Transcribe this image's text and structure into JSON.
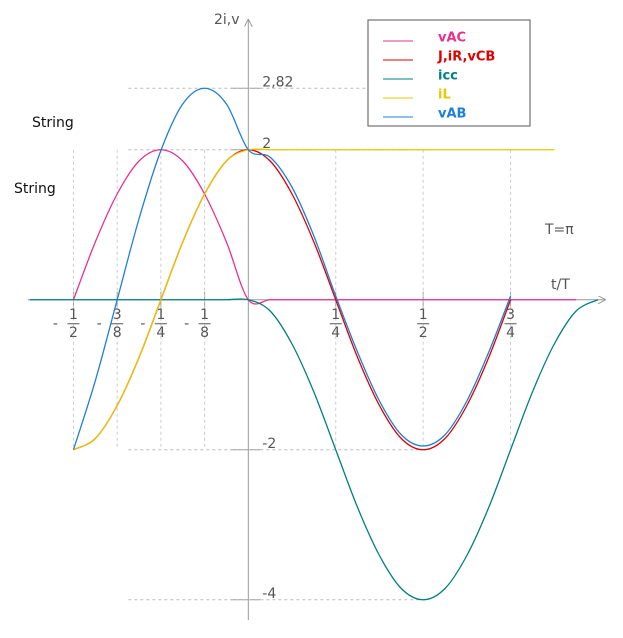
{
  "chart_data": {
    "type": "line",
    "x_label": "t/T",
    "y_label": "2i,v",
    "annotations": [
      "String",
      "String",
      "T=π"
    ],
    "x": [
      -0.625,
      -0.5625,
      -0.5,
      -0.4375,
      -0.375,
      -0.3125,
      -0.25,
      -0.1875,
      -0.125,
      -0.0625,
      0,
      0.0625,
      0.125,
      0.1875,
      0.25,
      0.3125,
      0.375,
      0.4375,
      0.5,
      0.5625,
      0.625,
      0.6875,
      0.75,
      0.8125,
      0.875,
      0.9375,
      1.0
    ],
    "series": [
      {
        "name": "vAC",
        "color": "#e8308f",
        "values": [
          null,
          null,
          0,
          0.77,
          1.41,
          1.85,
          2,
          1.85,
          1.41,
          0.77,
          0,
          0,
          0,
          0,
          0,
          0,
          0,
          0,
          0,
          0,
          0,
          0,
          0,
          0,
          0,
          0,
          null
        ]
      },
      {
        "name": "J,iR,vCB",
        "color": "#e00000",
        "values": [
          null,
          null,
          -2,
          -1.85,
          -1.41,
          -0.77,
          0,
          0.77,
          1.41,
          1.85,
          2,
          1.85,
          1.41,
          0.77,
          0,
          -0.77,
          -1.41,
          -1.85,
          -2,
          -1.85,
          -1.41,
          -0.77,
          0,
          null,
          null,
          null,
          null
        ]
      },
      {
        "name": "icc",
        "color": "#008080",
        "values": [
          0,
          0,
          0,
          0,
          0,
          0,
          0,
          0,
          0,
          0,
          0,
          -0.15,
          -0.59,
          -1.23,
          -2,
          -2.77,
          -3.41,
          -3.85,
          -4,
          -3.85,
          -3.41,
          -2.77,
          -2,
          -1.23,
          -0.59,
          -0.15,
          0
        ]
      },
      {
        "name": "iL",
        "color": "#e8c800",
        "values": [
          null,
          null,
          -2,
          -1.85,
          -1.41,
          -0.77,
          0,
          0.77,
          1.41,
          1.85,
          2,
          2,
          2,
          2,
          2,
          2,
          2,
          2,
          2,
          2,
          2,
          2,
          2,
          2,
          2,
          null,
          null
        ]
      },
      {
        "name": "vAB",
        "color": "#1e7fd8",
        "values": [
          null,
          null,
          -2,
          -1.08,
          0,
          1.08,
          1.99,
          2.61,
          2.82,
          2.61,
          2,
          1.9,
          1.5,
          0.85,
          0.05,
          -0.7,
          -1.35,
          -1.8,
          -1.95,
          -1.8,
          -1.35,
          -0.7,
          0.05,
          null,
          null,
          null,
          null
        ]
      }
    ],
    "xlim": [
      -0.63,
      1.02
    ],
    "ylim": [
      -4.27,
      3.73
    ],
    "xticks": [
      {
        "value": -0.5,
        "label": "-1/2"
      },
      {
        "value": -0.375,
        "label": "-3/8"
      },
      {
        "value": -0.25,
        "label": "-1/4"
      },
      {
        "value": -0.125,
        "label": "-1/8"
      },
      {
        "value": 0.25,
        "label": "1/4"
      },
      {
        "value": 0.5,
        "label": "1/2"
      },
      {
        "value": 0.75,
        "label": "3/4"
      }
    ],
    "yticks": [
      {
        "value": 2.82,
        "label": "2,82"
      },
      2,
      -2,
      -4
    ],
    "legend": "upper right"
  }
}
